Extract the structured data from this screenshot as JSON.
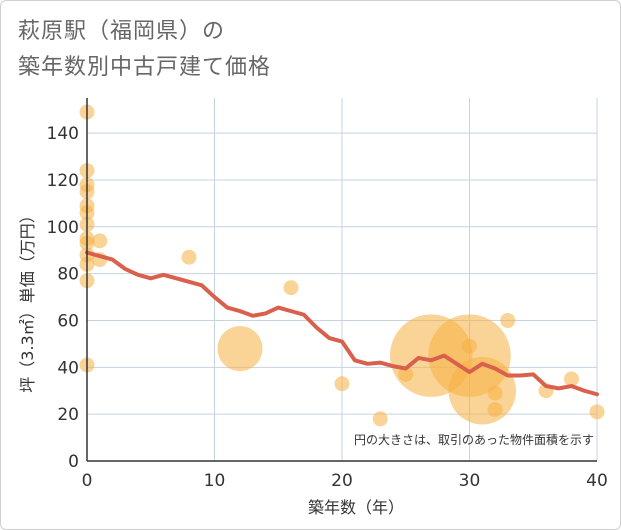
{
  "title": {
    "line1": "萩原駅（福岡県）の",
    "line2": "築年数別中古戸建て価格"
  },
  "chart_data": {
    "type": "scatter",
    "title": "萩原駅（福岡県）の築年数別中古戸建て価格",
    "xlabel": "築年数（年）",
    "ylabel": "坪（3.3㎡）単価（万円）",
    "xlim": [
      0,
      40
    ],
    "ylim": [
      0,
      155
    ],
    "xticks": [
      0,
      10,
      20,
      30,
      40
    ],
    "yticks": [
      0,
      20,
      40,
      60,
      80,
      100,
      120,
      140
    ],
    "grid": true,
    "note": "円の大きさは、取引のあった物件面積を示す",
    "colors": {
      "bubble": "#f5b041",
      "trend": "#d9604c"
    },
    "points": [
      {
        "x": 0,
        "y": 149,
        "s": 1
      },
      {
        "x": 0,
        "y": 124,
        "s": 1
      },
      {
        "x": 0,
        "y": 118,
        "s": 1
      },
      {
        "x": 0,
        "y": 115,
        "s": 1
      },
      {
        "x": 0,
        "y": 109,
        "s": 1
      },
      {
        "x": 0,
        "y": 106,
        "s": 1
      },
      {
        "x": 0,
        "y": 101,
        "s": 1
      },
      {
        "x": 0,
        "y": 95,
        "s": 1
      },
      {
        "x": 0,
        "y": 93,
        "s": 1
      },
      {
        "x": 0,
        "y": 88,
        "s": 1
      },
      {
        "x": 0,
        "y": 84,
        "s": 1
      },
      {
        "x": 0,
        "y": 77,
        "s": 1
      },
      {
        "x": 0,
        "y": 41,
        "s": 1
      },
      {
        "x": 1,
        "y": 94,
        "s": 1
      },
      {
        "x": 1,
        "y": 86,
        "s": 1
      },
      {
        "x": 8,
        "y": 87,
        "s": 1
      },
      {
        "x": 12,
        "y": 48,
        "s": 3
      },
      {
        "x": 16,
        "y": 74,
        "s": 1
      },
      {
        "x": 20,
        "y": 33,
        "s": 1
      },
      {
        "x": 23,
        "y": 18,
        "s": 1
      },
      {
        "x": 25,
        "y": 37,
        "s": 1
      },
      {
        "x": 27,
        "y": 45,
        "s": 5.5
      },
      {
        "x": 30,
        "y": 45,
        "s": 5.5
      },
      {
        "x": 30,
        "y": 49,
        "s": 1
      },
      {
        "x": 31,
        "y": 30,
        "s": 4.5
      },
      {
        "x": 32,
        "y": 29,
        "s": 1
      },
      {
        "x": 32,
        "y": 22,
        "s": 1
      },
      {
        "x": 33,
        "y": 60,
        "s": 1
      },
      {
        "x": 36,
        "y": 30,
        "s": 1
      },
      {
        "x": 38,
        "y": 35,
        "s": 1
      },
      {
        "x": 40,
        "y": 21,
        "s": 1
      }
    ],
    "trend": {
      "x": [
        0,
        1,
        2,
        3,
        4,
        5,
        6,
        7,
        8,
        9,
        10,
        11,
        12,
        13,
        14,
        15,
        16,
        17,
        18,
        19,
        20,
        21,
        22,
        23,
        24,
        25,
        26,
        27,
        28,
        29,
        30,
        31,
        32,
        33,
        34,
        35,
        36,
        37,
        38,
        39,
        40
      ],
      "y": [
        89,
        87.5,
        86,
        82,
        79.5,
        78,
        79.5,
        78,
        76.5,
        75,
        70,
        65.5,
        64,
        62,
        63,
        65.5,
        64,
        62.5,
        57,
        52.5,
        51,
        43,
        41.5,
        42,
        40.5,
        39.5,
        44,
        43,
        45,
        41.5,
        38,
        41.5,
        39.5,
        36.5,
        36.5,
        37,
        32,
        31,
        32,
        30,
        28.5
      ]
    }
  }
}
